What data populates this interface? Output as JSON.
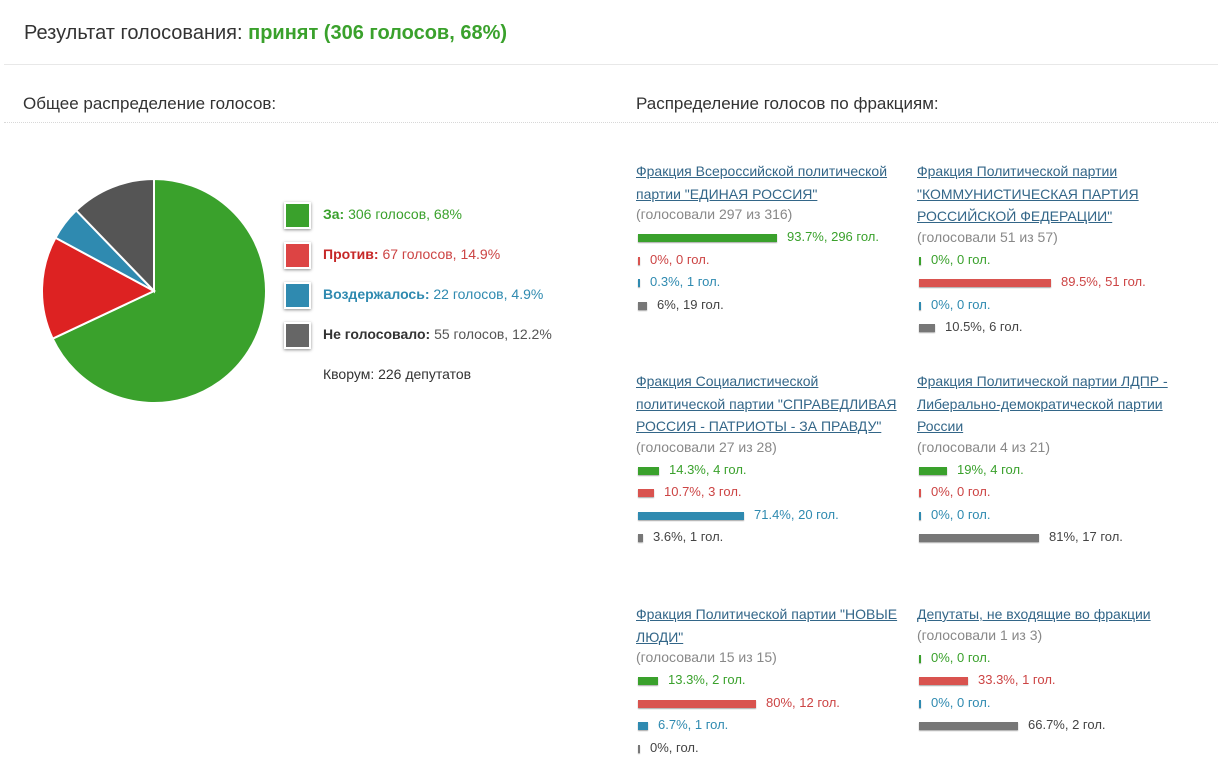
{
  "result": {
    "label": "Результат голосования:",
    "value": "принят (306 голосов, 68%)"
  },
  "overall": {
    "title": "Общее распределение голосов:",
    "quorum": "Кворум: 226 депутатов",
    "items": [
      {
        "key": "for",
        "name": "За:",
        "text": "306 голосов, 68%",
        "value": 306,
        "color": "#3aa12c"
      },
      {
        "key": "against",
        "name": "Против:",
        "text": "67 голосов, 14.9%",
        "value": 67,
        "color": "#dd2222"
      },
      {
        "key": "abst",
        "name": "Воздержалось:",
        "text": "22 голосов, 4.9%",
        "value": 22,
        "color": "#2f8ab0"
      },
      {
        "key": "none",
        "name": "Не голосовало:",
        "text": "55 голосов, 12.2%",
        "value": 55,
        "color": "#555555"
      }
    ]
  },
  "factions_title": "Распределение голосов по фракциям:",
  "factions": [
    {
      "name": "Фракция Всероссийской политической партии \"ЕДИНАЯ РОССИЯ\"",
      "voted": "(голосовали 297 из 316)",
      "votes": [
        {
          "type": "for",
          "pct": 93.7,
          "label": "93.7%, 296 гол."
        },
        {
          "type": "against",
          "pct": 0,
          "label": "0%, 0 гол."
        },
        {
          "type": "abst",
          "pct": 0.3,
          "label": "0.3%, 1 гол."
        },
        {
          "type": "none",
          "pct": 6,
          "label": "6%, 19 гол."
        }
      ]
    },
    {
      "name": "Фракция Политической партии \"КОММУНИСТИЧЕСКАЯ ПАРТИЯ РОССИЙСКОЙ ФЕДЕРАЦИИ\"",
      "voted": "(голосовали 51 из 57)",
      "votes": [
        {
          "type": "for",
          "pct": 0,
          "label": "0%, 0 гол."
        },
        {
          "type": "against",
          "pct": 89.5,
          "label": "89.5%, 51 гол."
        },
        {
          "type": "abst",
          "pct": 0,
          "label": "0%, 0 гол."
        },
        {
          "type": "none",
          "pct": 10.5,
          "label": "10.5%, 6 гол."
        }
      ]
    },
    {
      "name": "Фракция Социалистической политической партии \"СПРАВЕДЛИВАЯ РОССИЯ - ПАТРИОТЫ - ЗА ПРАВДУ\"",
      "voted": "(голосовали 27 из 28)",
      "votes": [
        {
          "type": "for",
          "pct": 14.3,
          "label": "14.3%, 4 гол."
        },
        {
          "type": "against",
          "pct": 10.7,
          "label": "10.7%, 3 гол."
        },
        {
          "type": "abst",
          "pct": 71.4,
          "label": "71.4%, 20 гол."
        },
        {
          "type": "none",
          "pct": 3.6,
          "label": "3.6%, 1 гол."
        }
      ]
    },
    {
      "name": "Фракция Политической партии ЛДПР - Либерально-демократической партии России",
      "voted": "(голосовали 4 из 21)",
      "votes": [
        {
          "type": "for",
          "pct": 19,
          "label": "19%, 4 гол."
        },
        {
          "type": "against",
          "pct": 0,
          "label": "0%, 0 гол."
        },
        {
          "type": "abst",
          "pct": 0,
          "label": "0%, 0 гол."
        },
        {
          "type": "none",
          "pct": 81,
          "label": "81%, 17 гол."
        }
      ]
    },
    {
      "name": "Фракция Политической партии \"НОВЫЕ ЛЮДИ\"",
      "voted": "(голосовали 15 из 15)",
      "votes": [
        {
          "type": "for",
          "pct": 13.3,
          "label": "13.3%, 2 гол."
        },
        {
          "type": "against",
          "pct": 80,
          "label": "80%, 12 гол."
        },
        {
          "type": "abst",
          "pct": 6.7,
          "label": "6.7%, 1 гол."
        },
        {
          "type": "none",
          "pct": 0,
          "label": "0%, гол."
        }
      ]
    },
    {
      "name": "Депутаты, не входящие во фракции",
      "voted": "(голосовали 1 из 3)",
      "votes": [
        {
          "type": "for",
          "pct": 0,
          "label": "0%, 0 гол."
        },
        {
          "type": "against",
          "pct": 33.3,
          "label": "33.3%, 1 гол."
        },
        {
          "type": "abst",
          "pct": 0,
          "label": "0%, 0 гол."
        },
        {
          "type": "none",
          "pct": 66.7,
          "label": "66.7%, 2 гол."
        }
      ]
    }
  ],
  "chart_data": [
    {
      "type": "pie",
      "categories": [
        "За:",
        "Против:",
        "Воздержалось:",
        "Не голосовало:"
      ],
      "values": [
        306,
        67,
        22,
        55
      ],
      "percents": [
        68,
        14.9,
        4.9,
        12.2
      ],
      "colors": [
        "#3aa12c",
        "#dd2222",
        "#2f8ab0",
        "#555555"
      ]
    },
    {
      "type": "bar",
      "categories": [
        "Фракция Всероссийской политической партии \"ЕДИНАЯ РОССИЯ\"",
        "Фракция Политической партии \"КОММУНИСТИЧЕСКАЯ ПАРТИЯ РОССИЙСКОЙ ФЕДЕРАЦИИ\"",
        "Фракция Социалистической политической партии \"СПРАВЕДЛИВАЯ РОССИЯ - ПАТРИОТЫ - ЗА ПРАВДУ\"",
        "Фракция Политической партии ЛДПР - Либерально-демократической партии России",
        "Фракция Политической партии \"НОВЫЕ ЛЮДИ\"",
        "Депутаты, не входящие во фракции"
      ],
      "series": [
        {
          "values": [
            93.7,
            0,
            14.3,
            19,
            13.3,
            0
          ]
        },
        {
          "values": [
            0,
            89.5,
            10.7,
            0,
            80,
            33.3
          ]
        },
        {
          "values": [
            0.3,
            0,
            71.4,
            0,
            6.7,
            0
          ]
        },
        {
          "values": [
            6,
            10.5,
            3.6,
            81,
            0,
            66.7
          ]
        }
      ]
    }
  ]
}
